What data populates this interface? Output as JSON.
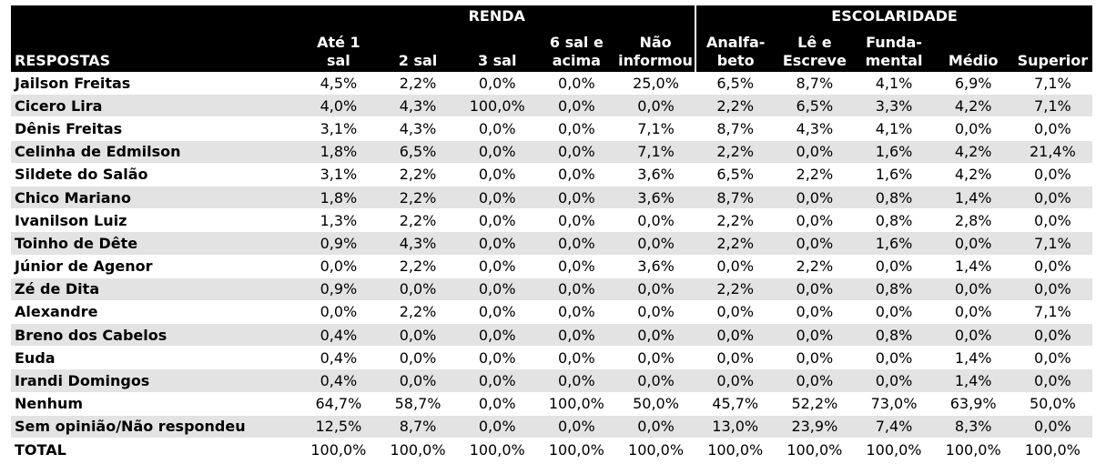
{
  "header": {
    "respostas_label": "RESPOSTAS",
    "group_renda": "RENDA",
    "group_escolaridade": "ESCOLARIDADE",
    "columns": [
      [
        "Até 1",
        "sal"
      ],
      [
        "",
        "2 sal"
      ],
      [
        "",
        "3 sal"
      ],
      [
        "6 sal e",
        "acima"
      ],
      [
        "Não",
        "informou"
      ],
      [
        "Analfa-",
        "beto"
      ],
      [
        "Lê e",
        "Escreve"
      ],
      [
        "Funda-",
        "mental"
      ],
      [
        "",
        "Médio"
      ],
      [
        "",
        "Superior"
      ]
    ]
  },
  "rows": [
    {
      "label": "Jailson Freitas",
      "values": [
        "4,5%",
        "2,2%",
        "0,0%",
        "0,0%",
        "25,0%",
        "6,5%",
        "8,7%",
        "4,1%",
        "6,9%",
        "7,1%"
      ]
    },
    {
      "label": "Cicero Lira",
      "values": [
        "4,0%",
        "4,3%",
        "100,0%",
        "0,0%",
        "0,0%",
        "2,2%",
        "6,5%",
        "3,3%",
        "4,2%",
        "7,1%"
      ]
    },
    {
      "label": "Dênis Freitas",
      "values": [
        "3,1%",
        "4,3%",
        "0,0%",
        "0,0%",
        "7,1%",
        "8,7%",
        "4,3%",
        "4,1%",
        "0,0%",
        "0,0%"
      ]
    },
    {
      "label": "Celinha de Edmilson",
      "values": [
        "1,8%",
        "6,5%",
        "0,0%",
        "0,0%",
        "7,1%",
        "2,2%",
        "0,0%",
        "1,6%",
        "4,2%",
        "21,4%"
      ]
    },
    {
      "label": "Sildete do Salão",
      "values": [
        "3,1%",
        "2,2%",
        "0,0%",
        "0,0%",
        "3,6%",
        "6,5%",
        "2,2%",
        "1,6%",
        "4,2%",
        "0,0%"
      ]
    },
    {
      "label": "Chico Mariano",
      "values": [
        "1,8%",
        "2,2%",
        "0,0%",
        "0,0%",
        "3,6%",
        "8,7%",
        "0,0%",
        "0,8%",
        "1,4%",
        "0,0%"
      ]
    },
    {
      "label": "Ivanilson Luiz",
      "values": [
        "1,3%",
        "2,2%",
        "0,0%",
        "0,0%",
        "0,0%",
        "2,2%",
        "0,0%",
        "0,8%",
        "2,8%",
        "0,0%"
      ]
    },
    {
      "label": "Toinho de Dête",
      "values": [
        "0,9%",
        "4,3%",
        "0,0%",
        "0,0%",
        "0,0%",
        "2,2%",
        "0,0%",
        "1,6%",
        "0,0%",
        "7,1%"
      ]
    },
    {
      "label": "Júnior de Agenor",
      "values": [
        "0,0%",
        "2,2%",
        "0,0%",
        "0,0%",
        "3,6%",
        "0,0%",
        "2,2%",
        "0,0%",
        "1,4%",
        "0,0%"
      ]
    },
    {
      "label": "Zé de Dita",
      "values": [
        "0,9%",
        "0,0%",
        "0,0%",
        "0,0%",
        "0,0%",
        "2,2%",
        "0,0%",
        "0,8%",
        "0,0%",
        "0,0%"
      ]
    },
    {
      "label": "Alexandre",
      "values": [
        "0,0%",
        "2,2%",
        "0,0%",
        "0,0%",
        "0,0%",
        "0,0%",
        "0,0%",
        "0,0%",
        "0,0%",
        "7,1%"
      ]
    },
    {
      "label": "Breno dos Cabelos",
      "values": [
        "0,4%",
        "0,0%",
        "0,0%",
        "0,0%",
        "0,0%",
        "0,0%",
        "0,0%",
        "0,8%",
        "0,0%",
        "0,0%"
      ]
    },
    {
      "label": "Euda",
      "values": [
        "0,4%",
        "0,0%",
        "0,0%",
        "0,0%",
        "0,0%",
        "0,0%",
        "0,0%",
        "0,0%",
        "1,4%",
        "0,0%"
      ]
    },
    {
      "label": "Irandi Domingos",
      "values": [
        "0,4%",
        "0,0%",
        "0,0%",
        "0,0%",
        "0,0%",
        "0,0%",
        "0,0%",
        "0,0%",
        "1,4%",
        "0,0%"
      ]
    },
    {
      "label": "Nenhum",
      "values": [
        "64,7%",
        "58,7%",
        "0,0%",
        "100,0%",
        "50,0%",
        "45,7%",
        "52,2%",
        "73,0%",
        "63,9%",
        "50,0%"
      ]
    },
    {
      "label": "Sem opinião/Não respondeu",
      "values": [
        "12,5%",
        "8,7%",
        "0,0%",
        "0,0%",
        "0,0%",
        "13,0%",
        "23,9%",
        "7,4%",
        "8,3%",
        "0,0%"
      ]
    },
    {
      "label": "TOTAL",
      "values": [
        "100,0%",
        "100,0%",
        "100,0%",
        "100,0%",
        "100,0%",
        "100,0%",
        "100,0%",
        "100,0%",
        "100,0%",
        "100,0%"
      ]
    }
  ]
}
